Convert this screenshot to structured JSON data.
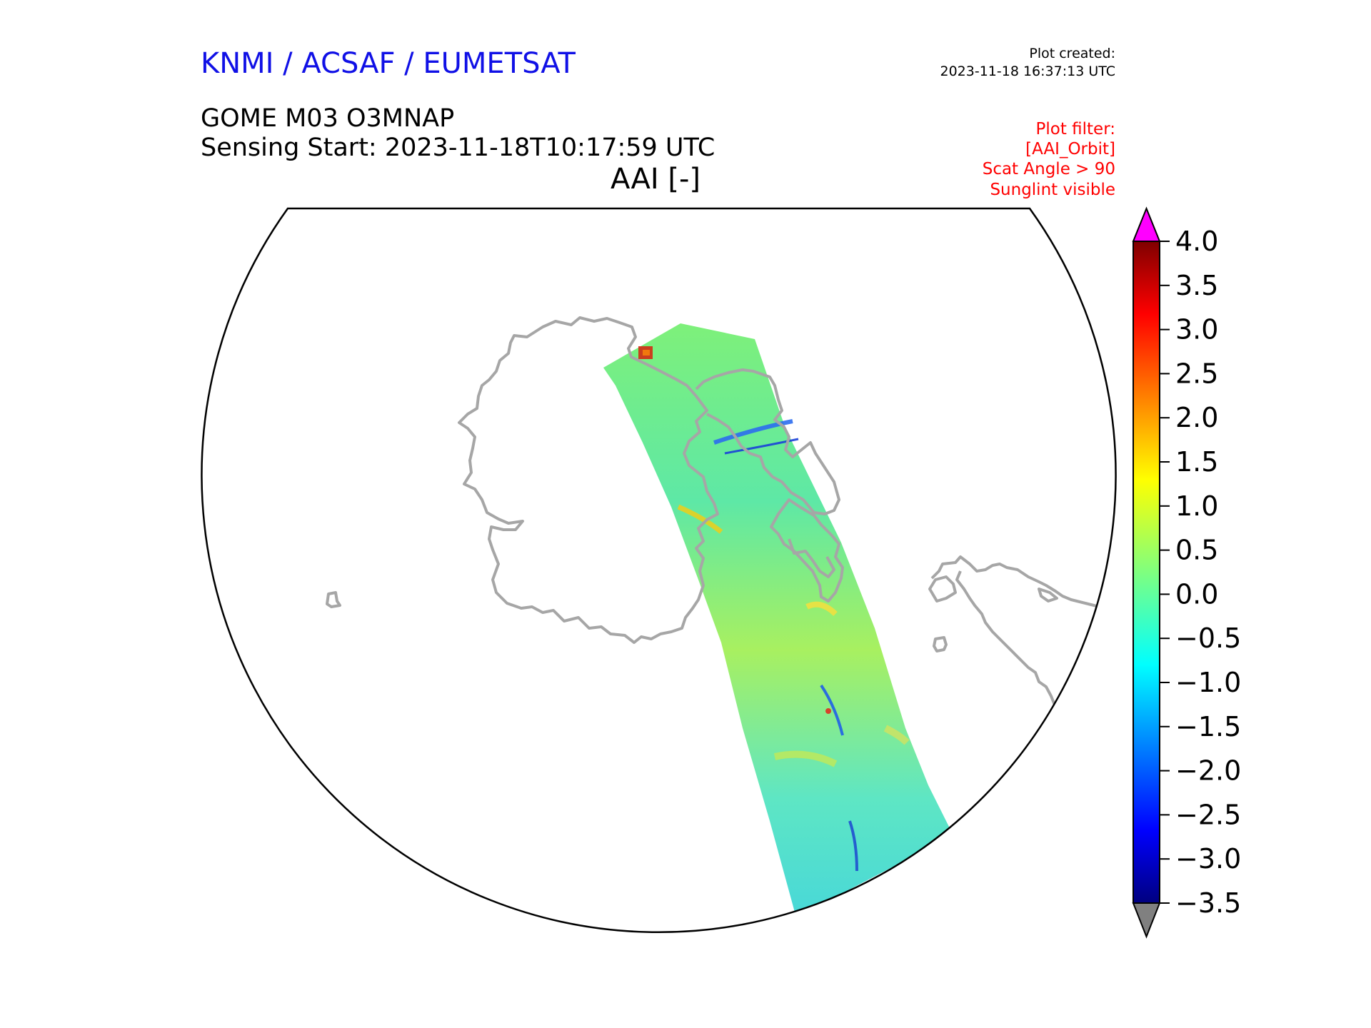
{
  "header": {
    "organization": "KNMI / ACSAF / EUMETSAT",
    "plot_created_label": "Plot created:",
    "plot_created_timestamp": "2023-11-18 16:37:13 UTC",
    "product": "GOME M03 O3MNAP",
    "sensing_start": "Sensing Start: 2023-11-18T10:17:59 UTC",
    "variable_title": "AAI [-]"
  },
  "plot_filter": [
    "Plot filter:",
    "[AAI_Orbit]",
    "Scat Angle > 90",
    "Sunglint visible"
  ],
  "colorbar": {
    "min": -3.5,
    "max": 4.0,
    "ticks": [
      "4.0",
      "3.5",
      "3.0",
      "2.5",
      "2.0",
      "1.5",
      "1.0",
      "0.5",
      "0.0",
      "−0.5",
      "−1.0",
      "−1.5",
      "−2.0",
      "−2.5",
      "−3.0",
      "−3.5"
    ],
    "tick_values": [
      4.0,
      3.5,
      3.0,
      2.5,
      2.0,
      1.5,
      1.0,
      0.5,
      0.0,
      -0.5,
      -1.0,
      -1.5,
      -2.0,
      -2.5,
      -3.0,
      -3.5
    ],
    "colormap": "jet",
    "over_color": "#ff00ff",
    "under_color": "#808080"
  },
  "map": {
    "projection": "polar-stereographic",
    "coastline_color": "#a6a6a6",
    "swath_color_hint": "#7fe08a"
  }
}
